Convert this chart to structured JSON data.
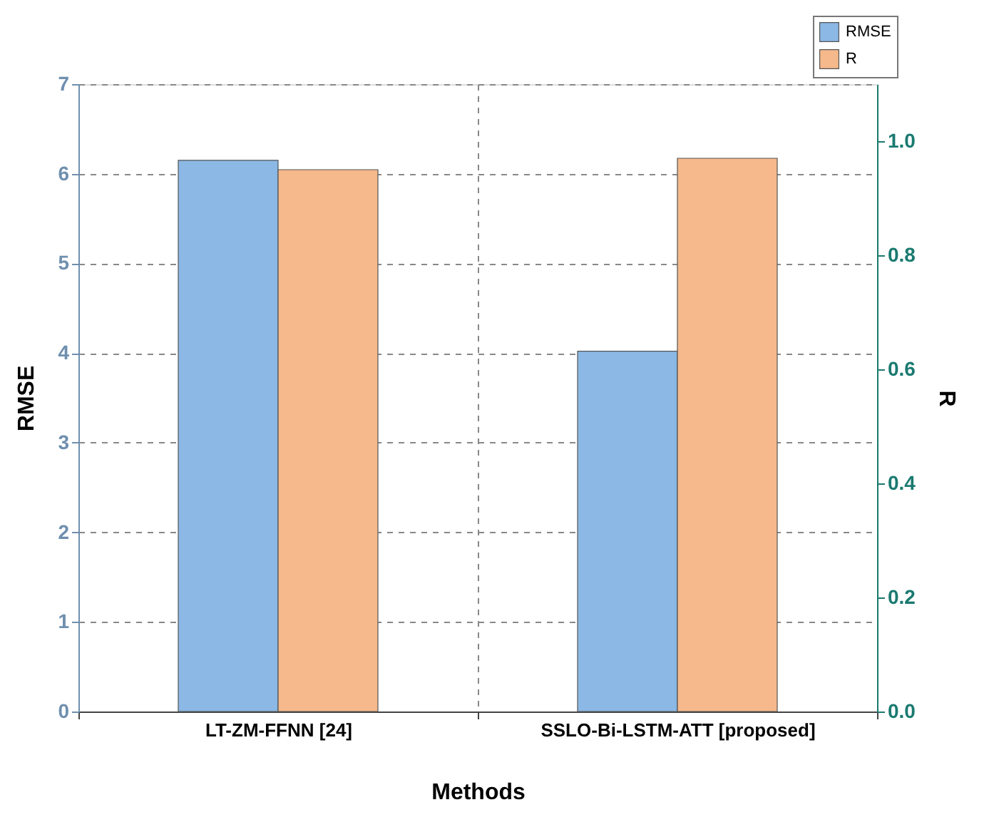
{
  "chart_data": {
    "type": "bar",
    "xlabel": "Methods",
    "ylabel": "RMSE",
    "y2label": "R",
    "categories": [
      "LT-ZM-FFNN [24]",
      "SSLO-Bi-LSTM-ATT [proposed]"
    ],
    "series": [
      {
        "name": "RMSE",
        "color": "#8bb8e4",
        "values": [
          6.15,
          4.02
        ]
      },
      {
        "name": "R",
        "color": "#f5b98c",
        "values": [
          0.95,
          0.97
        ],
        "axis": "y2"
      }
    ],
    "ylim": [
      0,
      7
    ],
    "yticks": [
      0,
      1,
      2,
      3,
      4,
      5,
      6,
      7
    ],
    "y2lim": [
      0,
      1.1
    ],
    "y2ticks": [
      {
        "value": 0,
        "label": "0.0"
      },
      0.2,
      0.4,
      0.6,
      0.8,
      {
        "value": 1,
        "label": "1.0"
      }
    ],
    "grid": true,
    "legend": "top right"
  }
}
